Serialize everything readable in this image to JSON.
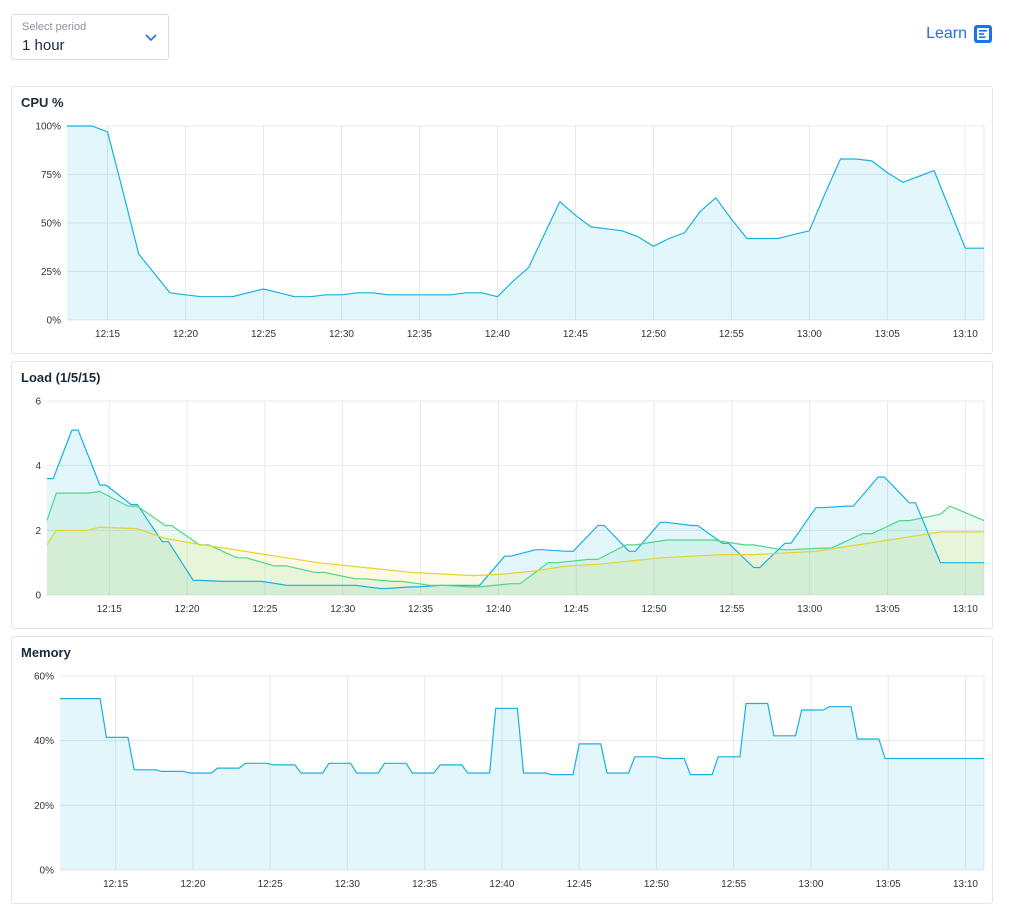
{
  "period": {
    "label": "Select period",
    "value": "1 hour"
  },
  "learn": {
    "label": "Learn"
  },
  "colors": {
    "blue": "#17b2e0",
    "green": "#4fd68a",
    "yellow": "#e8d22c",
    "grid": "#e6e9ec",
    "fill_blue": "#e5f5fc"
  },
  "chart_data": [
    {
      "type": "area",
      "title": "CPU %",
      "xlabel": "",
      "ylabel": "",
      "x_range": [
        12.4,
        71.2
      ],
      "ylim": [
        0,
        100
      ],
      "y_ticks": [
        0,
        25,
        50,
        75,
        100
      ],
      "y_tick_labels": [
        "0%",
        "25%",
        "50%",
        "75%",
        "100%"
      ],
      "x_ticks": [
        15,
        20,
        25,
        30,
        35,
        40,
        45,
        50,
        55,
        60,
        65,
        70
      ],
      "x_tick_labels": [
        "12:15",
        "12:20",
        "12:25",
        "12:30",
        "12:35",
        "12:40",
        "12:45",
        "12:50",
        "12:55",
        "13:00",
        "13:05",
        "13:10"
      ],
      "grid": true,
      "legend": "none",
      "series": [
        {
          "color": "#17b2e0",
          "x": [
            12.4,
            13.0,
            14.0,
            15.0,
            16.0,
            17.0,
            18.0,
            19.0,
            20.0,
            21.0,
            22.0,
            23.0,
            24.0,
            25.0,
            26.0,
            27.0,
            28.0,
            29.0,
            30.0,
            31.0,
            32.0,
            33.0,
            34.0,
            35.0,
            36.0,
            37.0,
            38.0,
            39.0,
            40.0,
            41.0,
            42.0,
            43.0,
            44.0,
            45.0,
            46.0,
            47.0,
            48.0,
            49.0,
            50.0,
            51.0,
            52.0,
            53.0,
            54.0,
            55.0,
            56.0,
            57.0,
            58.0,
            59.0,
            60.0,
            61.0,
            62.0,
            63.0,
            64.0,
            65.0,
            66.0,
            67.0,
            68.0,
            69.0,
            70.0,
            71.2
          ],
          "values": [
            100,
            100,
            100,
            97,
            66,
            34,
            24,
            14,
            13,
            12,
            12,
            12,
            14,
            16,
            14,
            12,
            12,
            13,
            13,
            14,
            14,
            13,
            13,
            13,
            13,
            13,
            14,
            14,
            12,
            20,
            27,
            44,
            61,
            54,
            48,
            47,
            46,
            43,
            38,
            42,
            45,
            56,
            63,
            52,
            42,
            42,
            42,
            44,
            46,
            65,
            83,
            83,
            82,
            76,
            71,
            74,
            77,
            57,
            37,
            37
          ]
        }
      ]
    },
    {
      "type": "area",
      "title": "Load (1/5/15)",
      "xlabel": "",
      "ylabel": "",
      "x_range": [
        11.0,
        71.2
      ],
      "ylim": [
        0,
        6
      ],
      "y_ticks": [
        0,
        2,
        4,
        6
      ],
      "y_tick_labels": [
        "0",
        "2",
        "4",
        "6"
      ],
      "x_ticks": [
        15,
        20,
        25,
        30,
        35,
        40,
        45,
        50,
        55,
        60,
        65,
        70
      ],
      "x_tick_labels": [
        "12:15",
        "12:20",
        "12:25",
        "12:30",
        "12:35",
        "12:40",
        "12:45",
        "12:50",
        "12:55",
        "13:00",
        "13:05",
        "13:10"
      ],
      "grid": true,
      "legend": "none",
      "series": [
        {
          "color": "#17b2e0",
          "x": [
            11.0,
            11.4,
            12.6,
            13.0,
            14.4,
            14.8,
            16.4,
            16.8,
            18.4,
            18.8,
            20.4,
            20.8,
            22.4,
            22.8,
            24.4,
            24.8,
            26.4,
            26.8,
            28.4,
            28.8,
            30.4,
            30.8,
            32.4,
            32.8,
            34.4,
            34.8,
            36.4,
            36.8,
            38.4,
            38.8,
            40.4,
            40.8,
            42.4,
            42.8,
            44.4,
            44.8,
            46.4,
            46.8,
            48.4,
            48.8,
            50.4,
            50.8,
            52.4,
            52.8,
            54.4,
            54.8,
            56.4,
            56.8,
            58.4,
            58.8,
            60.4,
            60.8,
            62.4,
            62.8,
            64.4,
            64.8,
            66.4,
            66.8,
            68.4,
            68.8,
            70.0,
            71.2
          ],
          "values": [
            3.6,
            3.6,
            5.1,
            5.1,
            3.4,
            3.4,
            2.8,
            2.8,
            1.65,
            1.65,
            0.45,
            0.45,
            0.42,
            0.42,
            0.42,
            0.42,
            0.3,
            0.3,
            0.3,
            0.3,
            0.3,
            0.3,
            0.2,
            0.2,
            0.25,
            0.25,
            0.3,
            0.3,
            0.3,
            0.3,
            1.2,
            1.2,
            1.4,
            1.4,
            1.35,
            1.35,
            2.15,
            2.15,
            1.35,
            1.35,
            2.25,
            2.25,
            2.15,
            2.15,
            1.6,
            1.6,
            0.85,
            0.85,
            1.6,
            1.6,
            2.7,
            2.7,
            2.75,
            2.75,
            3.65,
            3.65,
            2.85,
            2.85,
            1.0,
            1.0,
            1.0,
            1.0
          ]
        },
        {
          "color": "#4fd68a",
          "x": [
            11.0,
            11.6,
            13.6,
            14.4,
            16.2,
            16.8,
            18.6,
            19.0,
            20.8,
            21.4,
            23.2,
            23.8,
            25.6,
            26.4,
            28.2,
            28.8,
            30.8,
            31.4,
            33.2,
            33.8,
            35.6,
            36.4,
            38.2,
            38.8,
            40.8,
            41.4,
            43.2,
            43.8,
            45.8,
            46.4,
            48.2,
            48.8,
            50.8,
            51.4,
            53.2,
            53.8,
            55.8,
            56.4,
            58.2,
            58.8,
            60.8,
            61.4,
            63.4,
            64.0,
            65.8,
            66.4,
            68.4,
            69.0,
            71.2
          ],
          "values": [
            2.3,
            3.15,
            3.15,
            3.2,
            2.75,
            2.75,
            2.15,
            2.15,
            1.55,
            1.55,
            1.15,
            1.15,
            0.9,
            0.9,
            0.7,
            0.7,
            0.5,
            0.5,
            0.42,
            0.42,
            0.3,
            0.3,
            0.25,
            0.25,
            0.35,
            0.35,
            1.0,
            1.0,
            1.1,
            1.1,
            1.55,
            1.55,
            1.7,
            1.7,
            1.7,
            1.7,
            1.55,
            1.55,
            1.4,
            1.4,
            1.45,
            1.45,
            1.9,
            1.9,
            2.3,
            2.3,
            2.5,
            2.75,
            2.3
          ]
        },
        {
          "color": "#e8d22c",
          "x": [
            11.0,
            11.6,
            13.6,
            14.4,
            16.8,
            18.6,
            20.4,
            22.4,
            24.4,
            26.4,
            28.4,
            30.4,
            32.4,
            34.4,
            36.4,
            38.4,
            40.4,
            42.4,
            44.4,
            46.4,
            48.4,
            50.4,
            52.4,
            54.4,
            56.4,
            58.4,
            60.4,
            62.4,
            64.4,
            66.4,
            68.4,
            71.2
          ],
          "values": [
            1.55,
            2.0,
            2.0,
            2.1,
            2.05,
            1.75,
            1.6,
            1.45,
            1.3,
            1.15,
            1.0,
            0.9,
            0.8,
            0.7,
            0.65,
            0.6,
            0.65,
            0.75,
            0.9,
            0.95,
            1.05,
            1.15,
            1.2,
            1.25,
            1.25,
            1.3,
            1.35,
            1.5,
            1.65,
            1.8,
            1.95,
            1.95
          ]
        }
      ]
    },
    {
      "type": "area",
      "title": "Memory",
      "xlabel": "",
      "ylabel": "",
      "x_range": [
        11.4,
        71.2
      ],
      "ylim": [
        0,
        60
      ],
      "y_ticks": [
        0,
        20,
        40,
        60
      ],
      "y_tick_labels": [
        "0%",
        "20%",
        "40%",
        "60%"
      ],
      "x_ticks": [
        15,
        20,
        25,
        30,
        35,
        40,
        45,
        50,
        55,
        60,
        65,
        70
      ],
      "x_tick_labels": [
        "12:15",
        "12:20",
        "12:25",
        "12:30",
        "12:35",
        "12:40",
        "12:45",
        "12:50",
        "12:55",
        "13:00",
        "13:05",
        "13:10"
      ],
      "grid": true,
      "legend": "none",
      "series": [
        {
          "color": "#17b2e0",
          "x": [
            11.4,
            12.8,
            14.0,
            14.4,
            15.8,
            16.2,
            17.6,
            18.0,
            19.4,
            19.8,
            21.2,
            21.6,
            23.0,
            23.4,
            24.8,
            25.2,
            26.6,
            27.0,
            28.4,
            28.8,
            30.2,
            30.6,
            32.0,
            32.4,
            33.8,
            34.2,
            35.6,
            36.0,
            37.4,
            37.8,
            39.2,
            39.6,
            41.0,
            41.4,
            42.8,
            43.2,
            44.6,
            45.0,
            46.4,
            46.8,
            48.2,
            48.6,
            50.0,
            50.4,
            51.8,
            52.2,
            53.6,
            54.0,
            55.4,
            55.8,
            57.2,
            57.6,
            59.0,
            59.4,
            60.8,
            61.2,
            62.6,
            63.0,
            64.4,
            64.8,
            66.2,
            66.6,
            68.0,
            68.4,
            69.8,
            70.2,
            71.2
          ],
          "values": [
            53,
            53,
            53,
            41,
            41,
            31,
            31,
            30.5,
            30.5,
            30,
            30,
            31.5,
            31.5,
            33,
            33,
            32.5,
            32.5,
            30,
            30,
            33,
            33,
            30,
            30,
            33,
            33,
            30,
            30,
            32.5,
            32.5,
            30,
            30,
            50,
            50,
            30,
            30,
            29.5,
            29.5,
            39,
            39,
            30,
            30,
            35,
            35,
            34.5,
            34.5,
            29.5,
            29.5,
            35,
            35,
            51.5,
            51.5,
            41.5,
            41.5,
            49.5,
            49.5,
            50.5,
            50.5,
            40.5,
            40.5,
            34.5,
            34.5,
            34.5,
            34.5,
            34.5,
            34.5,
            34.5,
            34.5
          ]
        }
      ]
    }
  ]
}
